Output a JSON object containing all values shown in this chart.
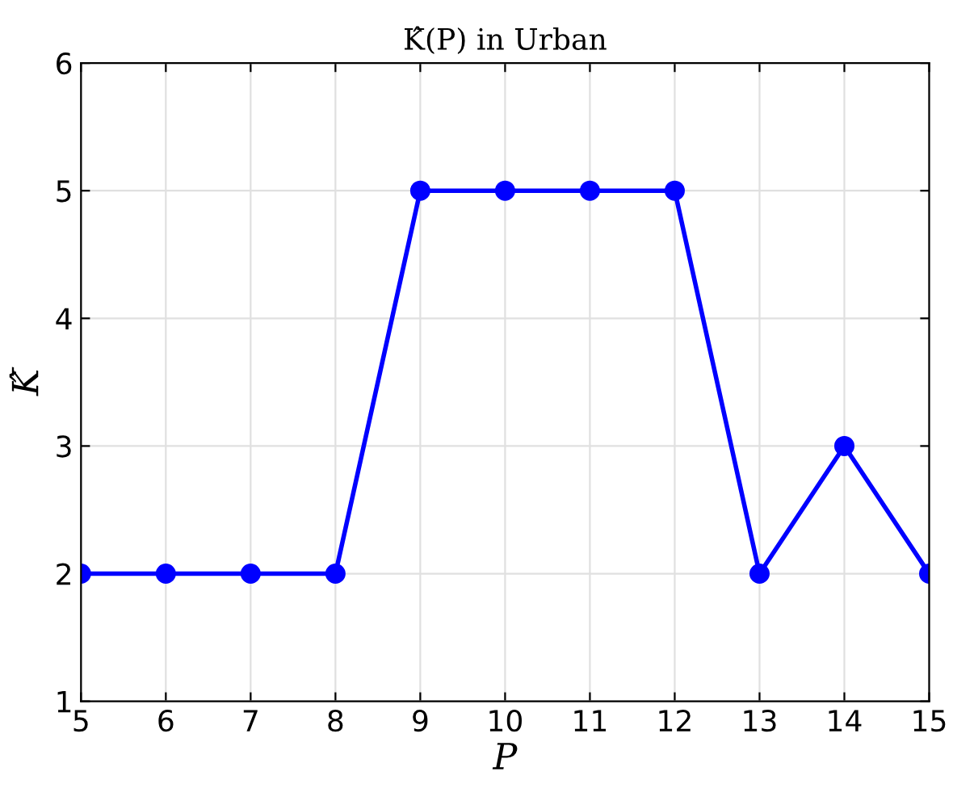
{
  "chart_data": {
    "type": "line",
    "title": "K̂(P) in Urban",
    "xlabel": "P",
    "ylabel": "K̂",
    "x": [
      5,
      6,
      7,
      8,
      9,
      10,
      11,
      12,
      13,
      14,
      15
    ],
    "series": [
      {
        "color": "#0000ff",
        "values": [
          2,
          2,
          2,
          2,
          5,
          5,
          5,
          5,
          2,
          3,
          2
        ]
      }
    ],
    "xlim": [
      5,
      15
    ],
    "xticks": [
      5,
      6,
      7,
      8,
      9,
      10,
      11,
      12,
      13,
      14,
      15
    ],
    "ylim": [
      1,
      6
    ],
    "yticks": [
      1,
      2,
      3,
      4,
      5,
      6
    ],
    "grid": true,
    "marker": "circle",
    "line_style": "solid",
    "legend": false
  }
}
